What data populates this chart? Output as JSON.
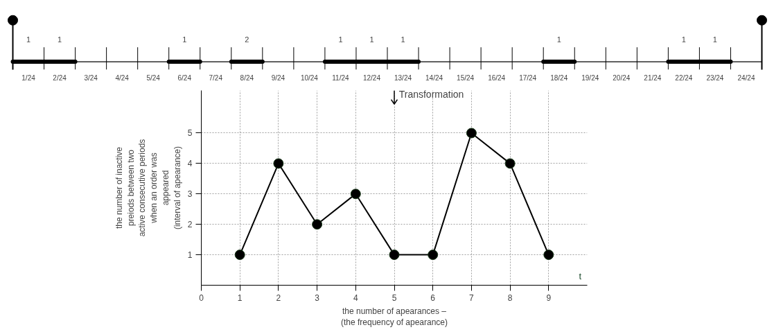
{
  "chart_data": [
    {
      "type": "other",
      "categories": [
        "1/24",
        "2/24",
        "3/24",
        "4/24",
        "5/24",
        "6/24",
        "7/24",
        "8/24",
        "9/24",
        "10/24",
        "11/24",
        "12/24",
        "13/24",
        "14/24",
        "15/24",
        "16/24",
        "17/24",
        "18/24",
        "19/24",
        "20/24",
        "21/24",
        "22/24",
        "23/24",
        "24/24"
      ],
      "values": [
        1,
        1,
        null,
        null,
        null,
        1,
        null,
        2,
        null,
        null,
        1,
        1,
        1,
        null,
        null,
        null,
        null,
        1,
        null,
        null,
        null,
        1,
        1,
        null
      ],
      "data_labels": true
    },
    {
      "type": "line",
      "x": [
        1,
        2,
        3,
        4,
        5,
        6,
        7,
        8,
        9
      ],
      "series": [
        {
          "color": "#000000",
          "values": [
            1,
            4,
            2,
            3,
            1,
            1,
            5,
            4,
            1
          ]
        }
      ],
      "xlim": [
        0,
        10
      ],
      "ylim": [
        0,
        6.4
      ],
      "xticks": [
        0,
        1,
        2,
        3,
        4,
        5,
        6,
        7,
        8,
        9
      ],
      "yticks": [
        1,
        2,
        3,
        4,
        5
      ],
      "xlabel": "the number of apearances –\n(the frequency of apearance)",
      "ylabel": "the number of inactive\npreiods between two\nactive consecutive periods\nwhen an order was\nappeared\n(interval of apearance)",
      "annotations": [
        "Transformation",
        "t"
      ],
      "grid": true,
      "marker": "circle",
      "line_style": "solid"
    }
  ]
}
